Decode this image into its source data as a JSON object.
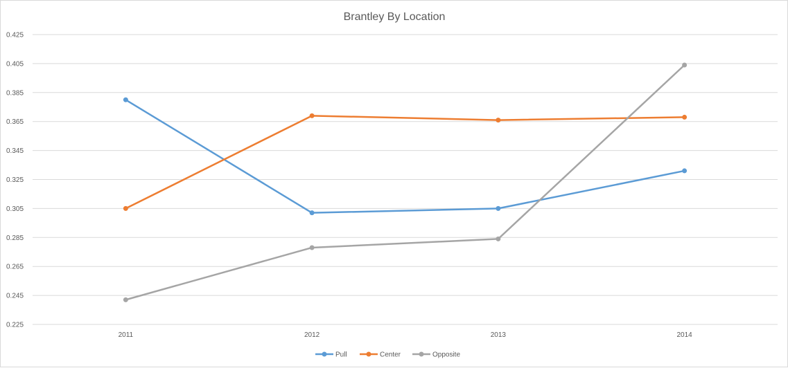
{
  "chart_data": {
    "type": "line",
    "title": "Brantley By Location",
    "xlabel": "",
    "ylabel": "",
    "categories": [
      "2011",
      "2012",
      "2013",
      "2014"
    ],
    "ylim": [
      0.225,
      0.425
    ],
    "yticks": [
      "0.225",
      "0.245",
      "0.265",
      "0.285",
      "0.305",
      "0.325",
      "0.345",
      "0.365",
      "0.385",
      "0.405",
      "0.425"
    ],
    "grid": true,
    "legend_position": "bottom",
    "series": [
      {
        "name": "Pull",
        "color": "#5b9bd5",
        "values": [
          0.38,
          0.302,
          0.305,
          0.331
        ]
      },
      {
        "name": "Center",
        "color": "#ed7d31",
        "values": [
          0.305,
          0.369,
          0.366,
          0.368
        ]
      },
      {
        "name": "Opposite",
        "color": "#a5a5a5",
        "values": [
          0.242,
          0.278,
          0.284,
          0.404
        ]
      }
    ]
  }
}
